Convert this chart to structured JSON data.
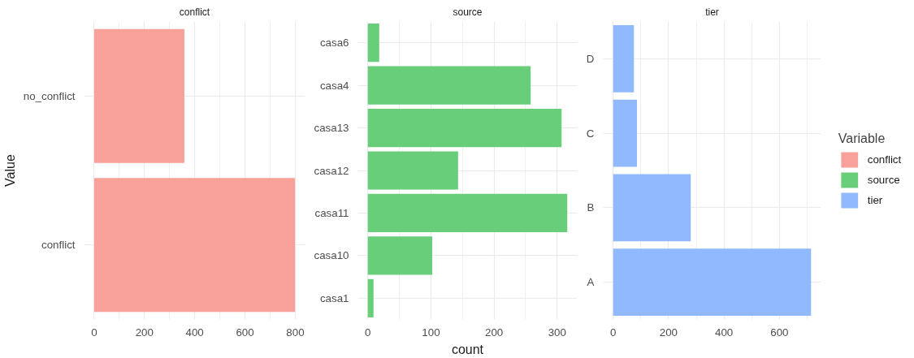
{
  "chart_data": [
    {
      "type": "bar",
      "orientation": "horizontal",
      "title": "conflict",
      "ylabel": "Value",
      "categories": [
        "no_conflict",
        "conflict"
      ],
      "series": [
        {
          "name": "conflict",
          "color": "#f8a09a",
          "values": [
            359,
            799
          ]
        }
      ],
      "xlim": [
        -40,
        839
      ],
      "xticks": [
        0,
        200,
        400,
        600,
        800
      ],
      "grid": true,
      "legend": "right"
    },
    {
      "type": "bar",
      "orientation": "horizontal",
      "title": "source",
      "xlabel": "count",
      "categories": [
        "casa6",
        "casa4",
        "casa13",
        "casa12",
        "casa11",
        "casa10",
        "casa1"
      ],
      "series": [
        {
          "name": "source",
          "color": "#69ce7a",
          "values": [
            18,
            258,
            307,
            143,
            316,
            102,
            9
          ]
        }
      ],
      "xlim": [
        -15.8,
        331.8
      ],
      "xticks": [
        0,
        100,
        200,
        300
      ],
      "grid": true,
      "legend": "right"
    },
    {
      "type": "bar",
      "orientation": "horizontal",
      "title": "tier",
      "legend_title": "Variable",
      "categories": [
        "D",
        "C",
        "B",
        "A"
      ],
      "series": [
        {
          "name": "tier",
          "color": "#91b9fd",
          "values": [
            75,
            86,
            280,
            714
          ]
        }
      ],
      "xlim": [
        -35.7,
        749.7
      ],
      "xticks": [
        0,
        200,
        400,
        600
      ],
      "grid": true,
      "legend": "right"
    }
  ]
}
